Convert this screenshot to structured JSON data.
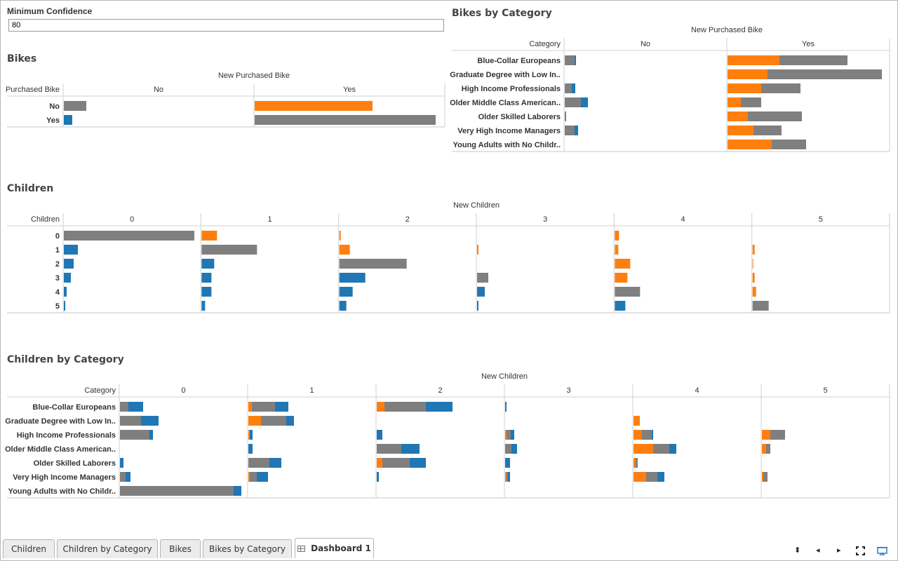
{
  "filter": {
    "label": "Minimum Confidence",
    "value": "80"
  },
  "tabs": [
    "Children",
    "Children by Category",
    "Bikes",
    "Bikes by Category",
    "Dashboard 1"
  ],
  "active_tab": "Dashboard 1",
  "colors": {
    "orange": "#ff7f0e",
    "gray": "#7f7f7f",
    "blue": "#1f77b4"
  },
  "chart_data": [
    {
      "type": "bar",
      "title": "Bikes",
      "col_header": "New Purchased Bike",
      "row_header": "Purchased Bike",
      "columns": [
        "No",
        "Yes"
      ],
      "rows": [
        "No",
        "Yes"
      ],
      "segment_colors": [
        "#ff7f0e",
        "#7f7f7f",
        "#1f77b4"
      ],
      "cells": [
        [
          [
            0,
            32,
            0
          ],
          [
            168,
            0,
            0
          ]
        ],
        [
          [
            0,
            0,
            12
          ],
          [
            0,
            258,
            0
          ]
        ]
      ]
    },
    {
      "type": "bar",
      "title": "Bikes by Category",
      "col_header": "New Purchased Bike",
      "row_header": "Category",
      "columns": [
        "No",
        "Yes"
      ],
      "rows": [
        "Blue-Collar Europeans",
        "Graduate Degree with Low In..",
        "High Income Professionals",
        "Older Middle Class American..",
        "Older Skilled Laborers",
        "Very High Income Managers",
        "Young Adults with No Childr.."
      ],
      "segment_colors": [
        "#ff7f0e",
        "#7f7f7f",
        "#1f77b4"
      ],
      "cells": [
        [
          [
            0,
            14,
            2
          ],
          [
            74,
            97,
            0
          ]
        ],
        [
          [
            0,
            0,
            0
          ],
          [
            57,
            163,
            0
          ]
        ],
        [
          [
            0,
            10,
            5
          ],
          [
            48,
            56,
            0
          ]
        ],
        [
          [
            0,
            23,
            10
          ],
          [
            19,
            29,
            0
          ]
        ],
        [
          [
            0,
            2,
            0
          ],
          [
            29,
            77,
            0
          ]
        ],
        [
          [
            0,
            14,
            5
          ],
          [
            37,
            40,
            0
          ]
        ],
        [
          [
            0,
            0,
            0
          ],
          [
            63,
            49,
            0
          ]
        ]
      ]
    },
    {
      "type": "bar",
      "title": "Children",
      "col_header": "New Children",
      "row_header": "Children",
      "columns": [
        "0",
        "1",
        "2",
        "3",
        "4",
        "5"
      ],
      "rows": [
        "0",
        "1",
        "2",
        "3",
        "4",
        "5"
      ],
      "segment_colors": [
        "#ff7f0e",
        "#7f7f7f",
        "#1f77b4"
      ],
      "cells": [
        [
          [
            0,
            186,
            0
          ],
          [
            22,
            0,
            0
          ],
          [
            2,
            0,
            0
          ],
          [
            0,
            0,
            0
          ],
          [
            6,
            0,
            0
          ],
          [
            0,
            0,
            0
          ]
        ],
        [
          [
            0,
            0,
            20
          ],
          [
            0,
            79,
            0
          ],
          [
            15,
            0,
            0
          ],
          [
            2,
            0,
            0
          ],
          [
            5,
            0,
            0
          ],
          [
            3,
            0,
            0
          ]
        ],
        [
          [
            0,
            0,
            14
          ],
          [
            0,
            0,
            18
          ],
          [
            0,
            96,
            0
          ],
          [
            0,
            0,
            0
          ],
          [
            22,
            0,
            0
          ],
          [
            1,
            0,
            0
          ]
        ],
        [
          [
            0,
            0,
            10
          ],
          [
            0,
            0,
            14
          ],
          [
            0,
            0,
            37
          ],
          [
            0,
            16,
            0
          ],
          [
            18,
            0,
            0
          ],
          [
            3,
            0,
            0
          ]
        ],
        [
          [
            0,
            0,
            4
          ],
          [
            0,
            0,
            14
          ],
          [
            0,
            0,
            19
          ],
          [
            0,
            0,
            11
          ],
          [
            0,
            36,
            0
          ],
          [
            5,
            0,
            0
          ]
        ],
        [
          [
            0,
            0,
            2
          ],
          [
            0,
            0,
            5
          ],
          [
            0,
            0,
            10
          ],
          [
            0,
            0,
            2
          ],
          [
            0,
            0,
            15
          ],
          [
            0,
            23,
            0
          ]
        ]
      ]
    },
    {
      "type": "bar",
      "title": "Children by Category",
      "col_header": "New Children",
      "row_header": "Category",
      "columns": [
        "0",
        "1",
        "2",
        "3",
        "4",
        "5"
      ],
      "rows": [
        "Blue-Collar Europeans",
        "Graduate Degree with Low In..",
        "High Income Professionals",
        "Older Middle Class American..",
        "Older Skilled Laborers",
        "Very High Income Managers",
        "Young Adults with No Childr.."
      ],
      "segment_colors": [
        "#ff7f0e",
        "#7f7f7f",
        "#1f77b4"
      ],
      "cells": [
        [
          [
            0,
            12,
            21
          ],
          [
            5,
            33,
            19
          ],
          [
            11,
            59,
            38
          ],
          [
            0,
            0,
            2
          ],
          [
            0,
            0,
            0
          ],
          [
            0,
            0,
            0
          ]
        ],
        [
          [
            0,
            30,
            25
          ],
          [
            18,
            36,
            11
          ],
          [
            0,
            0,
            0
          ],
          [
            0,
            0,
            0
          ],
          [
            9,
            0,
            0
          ],
          [
            0,
            0,
            0
          ]
        ],
        [
          [
            0,
            42,
            5
          ],
          [
            2,
            0,
            4
          ],
          [
            0,
            0,
            8
          ],
          [
            2,
            6,
            5
          ],
          [
            12,
            14,
            2
          ],
          [
            12,
            21,
            0
          ]
        ],
        [
          [
            0,
            0,
            0
          ],
          [
            0,
            0,
            6
          ],
          [
            0,
            35,
            26
          ],
          [
            0,
            9,
            8
          ],
          [
            28,
            23,
            10
          ],
          [
            6,
            6,
            0
          ]
        ],
        [
          [
            0,
            0,
            5
          ],
          [
            0,
            30,
            17
          ],
          [
            8,
            39,
            23
          ],
          [
            0,
            0,
            7
          ],
          [
            3,
            3,
            0
          ],
          [
            0,
            0,
            0
          ]
        ],
        [
          [
            0,
            8,
            7
          ],
          [
            2,
            10,
            16
          ],
          [
            0,
            0,
            3
          ],
          [
            2,
            2,
            3
          ],
          [
            18,
            16,
            10
          ],
          [
            2,
            6,
            0
          ]
        ],
        [
          [
            0,
            162,
            11
          ],
          [
            0,
            0,
            0
          ],
          [
            0,
            0,
            0
          ],
          [
            0,
            0,
            0
          ],
          [
            0,
            0,
            0
          ],
          [
            0,
            0,
            0
          ]
        ]
      ]
    }
  ]
}
